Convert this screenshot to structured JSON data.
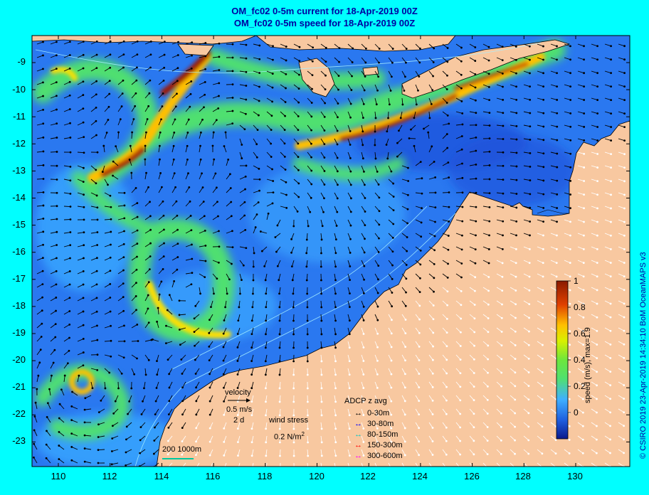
{
  "titles": {
    "line1": "OM_fc02 0-5m current for 18-Apr-2019 00Z",
    "line2": "OM_fc02 0-5m speed for 18-Apr-2019 00Z"
  },
  "axes": {
    "y_labels": [
      "-9",
      "-10",
      "-11",
      "-12",
      "-13",
      "-14",
      "-15",
      "-16",
      "-17",
      "-18",
      "-19",
      "-20",
      "-21",
      "-22",
      "-23"
    ],
    "x_labels": [
      "110",
      "112",
      "114",
      "116",
      "118",
      "120",
      "122",
      "124",
      "126",
      "128",
      "130"
    ]
  },
  "colorbar": {
    "ticks": [
      "1",
      "0.8",
      "0.6",
      "0.4",
      "0.2",
      "0"
    ],
    "label": "speed (m/s), max=1.9",
    "colors": [
      "#0a1a8c",
      "#1f5fe0",
      "#3fb0ff",
      "#50e070",
      "#6ee63c",
      "#d8f000",
      "#ffc000",
      "#e04000",
      "#8a1a00"
    ]
  },
  "credit": "© CSIRO 2019   23-Apr-2019 14:34:10 BoM OceanMAPS v3",
  "legend": {
    "velocity": "velocity",
    "speed": "0.5 m/s",
    "duration": "2 d",
    "wind_stress": "wind stress",
    "wind_unit_prefix": "0.2 N/m",
    "wind_unit_sup": "2",
    "scale_bar": "200  1000m"
  },
  "adcp": {
    "title": "ADCP z avg",
    "items": [
      {
        "label": "0-30m",
        "color": "#000000"
      },
      {
        "label": "30-80m",
        "color": "#0000ff"
      },
      {
        "label": "80-150m",
        "color": "#00c8c8"
      },
      {
        "label": "150-300m",
        "color": "#ff0000"
      },
      {
        "label": "300-600m",
        "color": "#ff00ff"
      }
    ]
  },
  "colors": {
    "land": "#f8c8a0",
    "ocean_deep": "#2a6aee",
    "frame_bg": "#00ffff"
  }
}
